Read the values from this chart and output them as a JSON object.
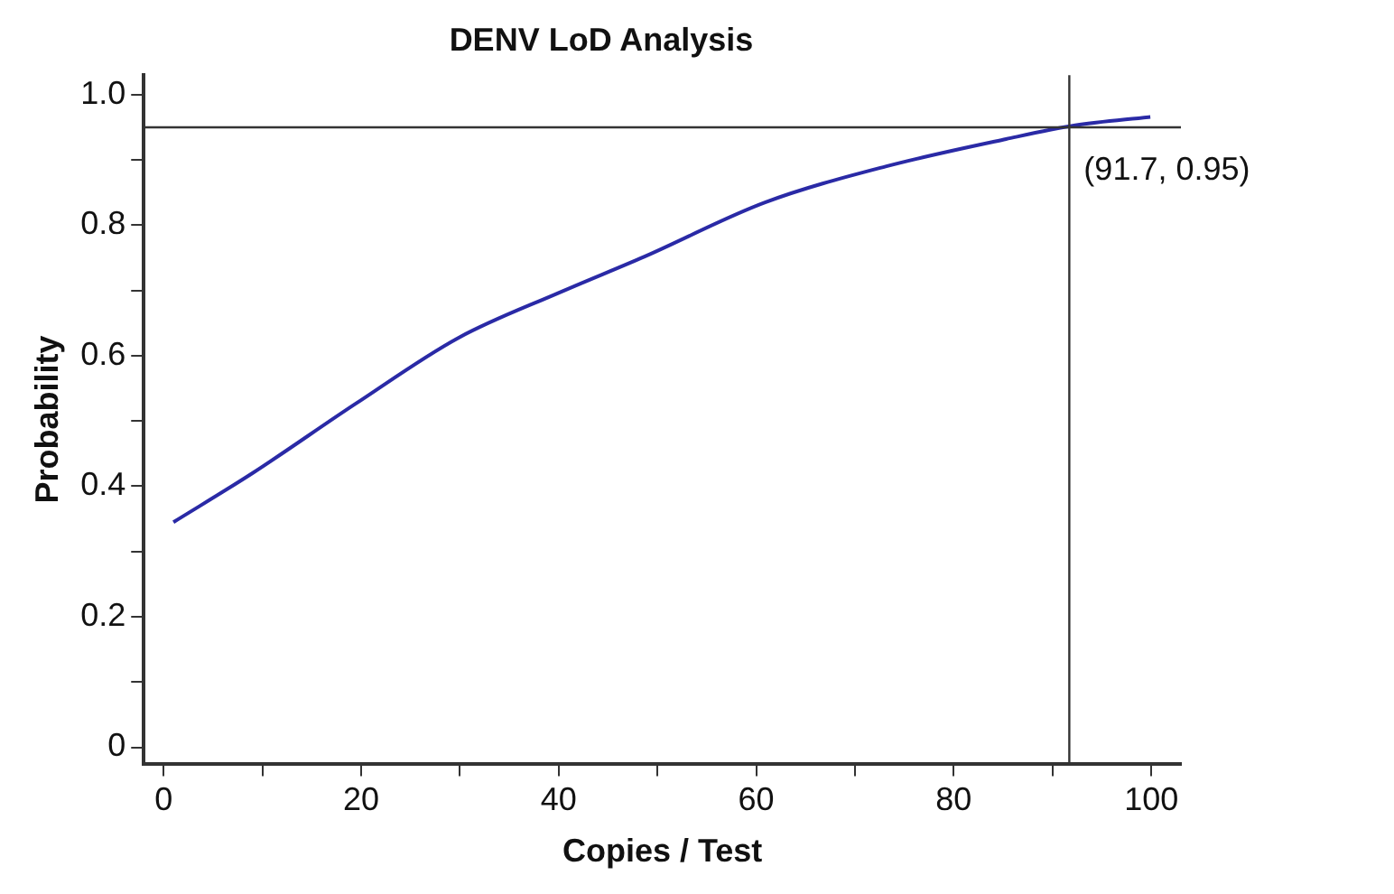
{
  "chart_data": {
    "type": "line",
    "title": "DENV LoD Analysis",
    "xlabel": "Copies / Test",
    "ylabel": "Probability",
    "series": [
      {
        "color": "#2a2aa6",
        "x": [
          1,
          9,
          19.4,
          29.8,
          40.1,
          48.7,
          60.9,
          73.1,
          85.3,
          92.3,
          99.9
        ],
        "values": [
          0.345,
          0.42,
          0.526,
          0.627,
          0.697,
          0.752,
          0.835,
          0.89,
          0.932,
          0.953,
          0.966
        ]
      }
    ],
    "xlim": [
      -2,
      103
    ],
    "xticks": [
      0,
      {
        "value": 10,
        "label": null
      },
      20,
      {
        "value": 30,
        "label": null
      },
      40,
      {
        "value": 50,
        "label": null
      },
      60,
      {
        "value": 70,
        "label": null
      },
      80,
      {
        "value": 90,
        "label": null
      },
      100
    ],
    "ylim": [
      -0.025,
      1.03
    ],
    "yticks": [
      0,
      {
        "value": 0.1,
        "label": null
      },
      0.2,
      {
        "value": 0.3,
        "label": null
      },
      0.4,
      {
        "value": 0.5,
        "label": null
      },
      0.6,
      {
        "value": 0.7,
        "label": null
      },
      0.8,
      {
        "value": 0.9,
        "label": null
      },
      {
        "value": 1,
        "label": "1.0"
      }
    ],
    "ref_lines": [
      {
        "axis": "y",
        "value": 0.95,
        "color": "#333333"
      },
      {
        "axis": "x",
        "value": 91.7,
        "color": "#333333"
      }
    ],
    "annotations": [
      {
        "text": "(91.7, 0.95)",
        "x": 91.7,
        "y": 0.95
      }
    ],
    "grid": false,
    "legend": false,
    "marker": "none",
    "line_style": "solid"
  }
}
